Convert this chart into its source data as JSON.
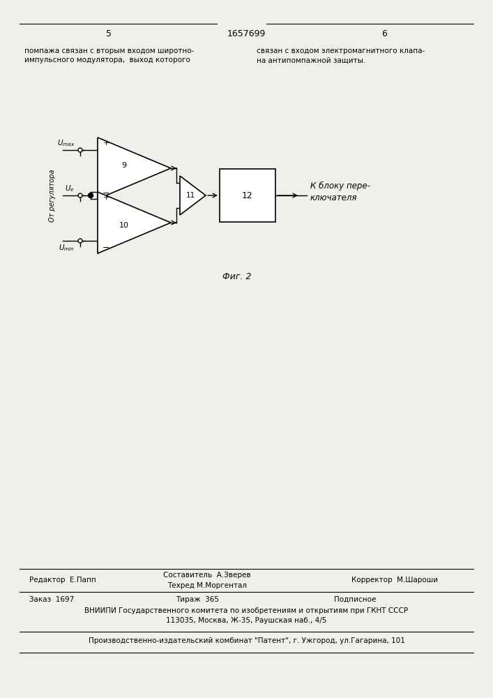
{
  "bg_color": "#f0f0eb",
  "page_width": 7.07,
  "page_height": 10.0,
  "page_num_left": "5",
  "page_num_center": "1657699",
  "page_num_right": "6",
  "text_left": "помпажа связан с вторым входом широтно-\nимпульсного модулятора,  выход которого",
  "text_right": "связан с входом электромагнитного клапа-\nна антипомпажной защиты.",
  "fig_caption": "Фиг. 2",
  "editor_line": "Редактор  Е.Папп",
  "composer_line1": "Составитель  А.Зверев",
  "composer_line2": "Техред М.Моргентал",
  "corrector_line": "Корректор  М.Шароши",
  "order_line": "Заказ  1697",
  "tirazh_line": "Тираж  365",
  "podpisnoe_line": "Подписное",
  "vniip_line": "ВНИИПИ Государственного комитета по изобретениям и открытиям при ГКНТ СССР",
  "address_line": "113035, Москва, Ж-35, Раушская наб., 4/5",
  "production_line": "Производственно-издательский комбинат \"Патент\", г. Ужгород, ул.Гагарина, 101"
}
